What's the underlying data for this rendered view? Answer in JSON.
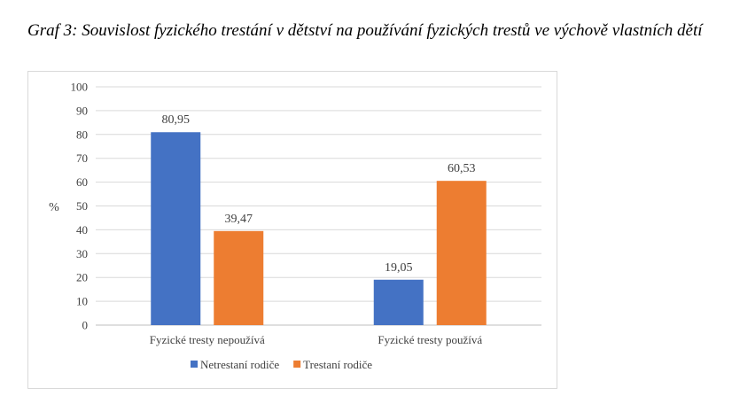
{
  "caption": "Graf 3: Souvislost fyzického trestání v dětství na používání fyzických trestů ve výchově vlastních dětí",
  "chart_data": {
    "type": "bar",
    "title": "",
    "categories": [
      "Fyzické tresty nepoužívá",
      "Fyzické tresty používá"
    ],
    "series": [
      {
        "name": "Netrestaní rodiče",
        "color": "#4472c4",
        "values": [
          80.95,
          19.05
        ],
        "labels": [
          "80,95",
          "19,05"
        ]
      },
      {
        "name": "Trestaní rodiče",
        "color": "#ed7d31",
        "values": [
          39.47,
          60.53
        ],
        "labels": [
          "39,47",
          "60,53"
        ]
      }
    ],
    "xlabel": "",
    "ylabel": "%",
    "ylim": [
      0,
      100
    ],
    "yticks": [
      0,
      10,
      20,
      30,
      40,
      50,
      60,
      70,
      80,
      90,
      100
    ],
    "grid": true,
    "legend": "bottom"
  }
}
